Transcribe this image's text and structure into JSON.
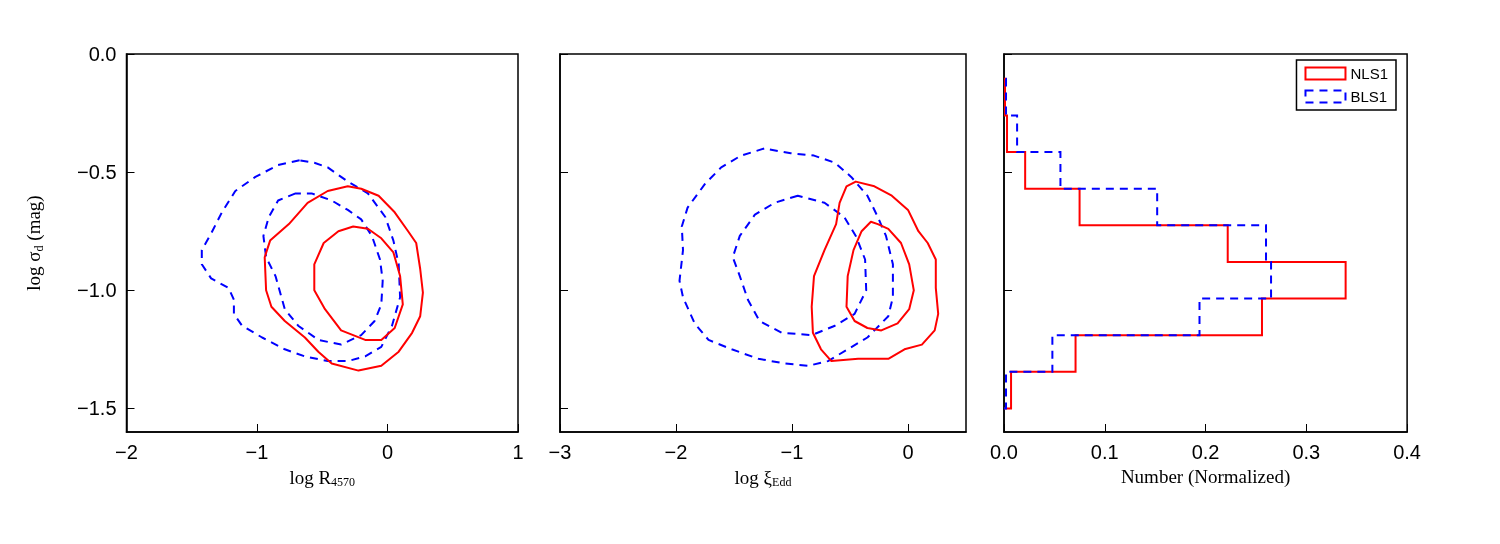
{
  "chart_data": [
    {
      "type": "line",
      "xlabel": "log R$_{4570}$",
      "ylabel": "log σ$_{d}$ (mag)",
      "xlim": [
        -2,
        1
      ],
      "ylim": [
        -1.6,
        0
      ],
      "xticks": [
        {
          "value": -2,
          "label": "−2"
        },
        {
          "value": -1,
          "label": "−1"
        },
        0,
        1
      ],
      "yticks": [
        {
          "value": -1.5,
          "label": "−1.5"
        },
        {
          "value": -1,
          "label": "−1.0"
        },
        {
          "value": -0.5,
          "label": "−0.5"
        },
        {
          "value": 0,
          "label": "0.0"
        }
      ]
    },
    {
      "type": "line",
      "xlabel": "log ξ$_{Edd}$",
      "xlim": [
        -3,
        0.5
      ],
      "ylim": [
        -1.6,
        0
      ],
      "xticks": [
        {
          "value": -3,
          "label": "−3"
        },
        {
          "value": -2,
          "label": "−2"
        },
        {
          "value": -1,
          "label": "−1"
        },
        0
      ],
      "yticks": [
        -1.5,
        -1,
        -0.5,
        0
      ],
      "tick_labels": "x"
    },
    {
      "type": "histogram",
      "orientation": "horizontal",
      "xlabel": "Number (Normalized)",
      "xlim": [
        0,
        0.4
      ],
      "ylim": [
        -1.6,
        0
      ],
      "xticks": [
        {
          "value": 0,
          "label": "0.0"
        },
        0.1,
        0.2,
        0.3,
        0.4
      ],
      "yticks": [
        -1.5,
        -1,
        -0.5,
        0
      ],
      "tick_labels": "x",
      "legend": "top right",
      "bins": [
        -1.5,
        -1.345,
        -1.19,
        -1.035,
        -0.88,
        -0.725,
        -0.57,
        -0.415,
        -0.26,
        -0.105
      ],
      "series": [
        {
          "name": "NLS1",
          "color": "#ff0000",
          "line_style": "solid",
          "values": [
            0.007,
            0.071,
            0.256,
            0.339,
            0.222,
            0.075,
            0.021,
            0.003,
            0.001
          ]
        },
        {
          "name": "BLS1",
          "color": "#0000ff",
          "line_style": "dashed",
          "values": [
            0.002,
            0.048,
            0.194,
            0.265,
            0.26,
            0.152,
            0.056,
            0.013,
            0.002
          ]
        }
      ]
    }
  ]
}
